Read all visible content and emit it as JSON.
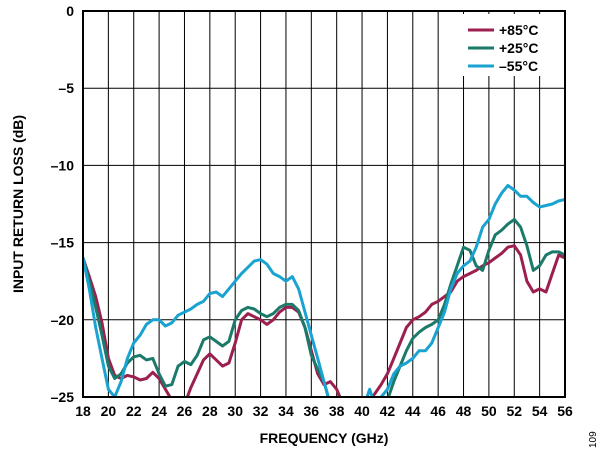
{
  "chart_data": {
    "type": "line",
    "xlabel": "FREQUENCY (GHz)",
    "ylabel": "INPUT RETURN LOSS (dB)",
    "xlim": [
      18,
      56
    ],
    "ylim": [
      -25,
      0
    ],
    "xticks": [
      18,
      20,
      22,
      24,
      26,
      28,
      30,
      32,
      34,
      36,
      38,
      40,
      42,
      44,
      46,
      48,
      50,
      52,
      54,
      56
    ],
    "xtick_labels": [
      "18",
      "20",
      "22",
      "24",
      "26",
      "28",
      "30",
      "32",
      "34",
      "36",
      "38",
      "40",
      "42",
      "44",
      "46",
      "48",
      "50",
      "52",
      "54",
      "56"
    ],
    "yticks": [
      0,
      -5,
      -10,
      -15,
      -20,
      -25
    ],
    "ytick_labels": [
      "0",
      "–5",
      "–10",
      "–15",
      "–20",
      "–25"
    ],
    "grid": true,
    "legend_position": "top-right",
    "figure_id": "109",
    "series": [
      {
        "name": "+85°C",
        "color": "#9b2050",
        "points": [
          [
            18,
            -16
          ],
          [
            18.5,
            -17.2
          ],
          [
            19,
            -18.5
          ],
          [
            19.5,
            -20.2
          ],
          [
            20,
            -22.5
          ],
          [
            20.5,
            -23.6
          ],
          [
            21,
            -23.8
          ],
          [
            21.5,
            -23.6
          ],
          [
            22,
            -23.7
          ],
          [
            22.5,
            -23.9
          ],
          [
            23,
            -23.8
          ],
          [
            23.5,
            -23.4
          ],
          [
            24,
            -23.8
          ],
          [
            24.5,
            -24.5
          ],
          [
            25,
            -25.2
          ],
          [
            25.5,
            -26
          ],
          [
            26,
            -25.5
          ],
          [
            26.5,
            -24.4
          ],
          [
            27,
            -23.5
          ],
          [
            27.5,
            -22.6
          ],
          [
            28,
            -22.2
          ],
          [
            28.5,
            -22.6
          ],
          [
            29,
            -23
          ],
          [
            29.5,
            -22.8
          ],
          [
            30,
            -21.5
          ],
          [
            30.5,
            -20
          ],
          [
            31,
            -19.6
          ],
          [
            31.5,
            -19.8
          ],
          [
            32,
            -20
          ],
          [
            32.5,
            -20.3
          ],
          [
            33,
            -20
          ],
          [
            33.5,
            -19.5
          ],
          [
            34,
            -19.2
          ],
          [
            34.5,
            -19.2
          ],
          [
            35,
            -19.5
          ],
          [
            35.5,
            -20.5
          ],
          [
            36,
            -22
          ],
          [
            36.5,
            -23.5
          ],
          [
            37,
            -24.2
          ],
          [
            37.5,
            -24
          ],
          [
            38,
            -24.5
          ],
          [
            38.5,
            -25.5
          ],
          [
            40,
            -27
          ],
          [
            40.5,
            -25.3
          ],
          [
            41,
            -24.8
          ],
          [
            41.5,
            -24.2
          ],
          [
            42,
            -23.5
          ],
          [
            42.5,
            -22.5
          ],
          [
            43,
            -21.5
          ],
          [
            43.5,
            -20.5
          ],
          [
            44,
            -20
          ],
          [
            44.5,
            -19.8
          ],
          [
            45,
            -19.5
          ],
          [
            45.5,
            -19
          ],
          [
            46,
            -18.8
          ],
          [
            46.5,
            -18.5
          ],
          [
            47,
            -18.2
          ],
          [
            47.5,
            -17.5
          ],
          [
            48,
            -17.2
          ],
          [
            48.5,
            -17
          ],
          [
            49,
            -16.8
          ],
          [
            49.5,
            -16.5
          ],
          [
            50,
            -16.3
          ],
          [
            50.5,
            -16
          ],
          [
            51,
            -15.7
          ],
          [
            51.5,
            -15.3
          ],
          [
            52,
            -15.2
          ],
          [
            52.5,
            -15.8
          ],
          [
            53,
            -17.5
          ],
          [
            53.5,
            -18.2
          ],
          [
            54,
            -18
          ],
          [
            54.5,
            -18.2
          ],
          [
            55,
            -17
          ],
          [
            55.5,
            -15.8
          ],
          [
            56,
            -16
          ]
        ]
      },
      {
        "name": "+25°C",
        "color": "#1b7a6a",
        "points": [
          [
            18,
            -16
          ],
          [
            18.5,
            -17.5
          ],
          [
            19,
            -19.2
          ],
          [
            19.5,
            -21
          ],
          [
            20,
            -23
          ],
          [
            20.5,
            -23.8
          ],
          [
            21,
            -23.5
          ],
          [
            21.5,
            -22.8
          ],
          [
            22,
            -22.4
          ],
          [
            22.5,
            -22.3
          ],
          [
            23,
            -22.6
          ],
          [
            23.5,
            -22.5
          ],
          [
            24,
            -23.5
          ],
          [
            24.5,
            -24.3
          ],
          [
            25,
            -24.2
          ],
          [
            25.5,
            -23
          ],
          [
            26,
            -22.7
          ],
          [
            26.5,
            -22.9
          ],
          [
            27,
            -22.3
          ],
          [
            27.5,
            -21.3
          ],
          [
            28,
            -21.1
          ],
          [
            28.5,
            -21.4
          ],
          [
            29,
            -21.7
          ],
          [
            29.5,
            -21.4
          ],
          [
            30,
            -20
          ],
          [
            30.5,
            -19.4
          ],
          [
            31,
            -19.2
          ],
          [
            31.5,
            -19.3
          ],
          [
            32,
            -19.6
          ],
          [
            32.5,
            -19.8
          ],
          [
            33,
            -19.6
          ],
          [
            33.5,
            -19.2
          ],
          [
            34,
            -19
          ],
          [
            34.5,
            -19
          ],
          [
            35,
            -19.4
          ],
          [
            35.5,
            -20.5
          ],
          [
            36,
            -22.3
          ],
          [
            36.5,
            -23.2
          ],
          [
            37,
            -24
          ],
          [
            37.5,
            -25.5
          ],
          [
            38,
            -27
          ],
          [
            41.5,
            -27
          ],
          [
            42,
            -25.2
          ],
          [
            42.5,
            -24
          ],
          [
            43,
            -23
          ],
          [
            43.5,
            -22
          ],
          [
            44,
            -21.2
          ],
          [
            44.5,
            -20.8
          ],
          [
            45,
            -20.5
          ],
          [
            45.5,
            -20.3
          ],
          [
            46,
            -20
          ],
          [
            46.5,
            -19
          ],
          [
            47,
            -17.7
          ],
          [
            47.5,
            -16.5
          ],
          [
            48,
            -15.3
          ],
          [
            48.5,
            -15.5
          ],
          [
            49,
            -16.5
          ],
          [
            49.5,
            -16.8
          ],
          [
            50,
            -15.5
          ],
          [
            50.5,
            -14.5
          ],
          [
            51,
            -14.2
          ],
          [
            51.5,
            -13.8
          ],
          [
            52,
            -13.5
          ],
          [
            52.5,
            -14
          ],
          [
            53,
            -15.2
          ],
          [
            53.5,
            -16.8
          ],
          [
            54,
            -16.5
          ],
          [
            54.5,
            -15.8
          ],
          [
            55,
            -15.6
          ],
          [
            55.5,
            -15.6
          ],
          [
            56,
            -15.8
          ]
        ]
      },
      {
        "name": "–55°C",
        "color": "#1aa3d1",
        "points": [
          [
            18,
            -16
          ],
          [
            18.5,
            -18
          ],
          [
            19,
            -20.5
          ],
          [
            19.5,
            -22.5
          ],
          [
            20,
            -24.5
          ],
          [
            20.5,
            -25
          ],
          [
            21,
            -24
          ],
          [
            21.5,
            -22.5
          ],
          [
            22,
            -21.5
          ],
          [
            22.5,
            -21
          ],
          [
            23,
            -20.3
          ],
          [
            23.5,
            -20
          ],
          [
            24,
            -20
          ],
          [
            24.5,
            -20.4
          ],
          [
            25,
            -20.2
          ],
          [
            25.5,
            -19.7
          ],
          [
            26,
            -19.5
          ],
          [
            26.5,
            -19.3
          ],
          [
            27,
            -19
          ],
          [
            27.5,
            -18.8
          ],
          [
            28,
            -18.3
          ],
          [
            28.5,
            -18.2
          ],
          [
            29,
            -18.5
          ],
          [
            29.5,
            -18
          ],
          [
            30,
            -17.5
          ],
          [
            30.5,
            -17
          ],
          [
            31,
            -16.6
          ],
          [
            31.5,
            -16.2
          ],
          [
            32,
            -16.1
          ],
          [
            32.5,
            -16.4
          ],
          [
            33,
            -17
          ],
          [
            33.5,
            -17.2
          ],
          [
            34,
            -17.5
          ],
          [
            34.5,
            -17.2
          ],
          [
            35,
            -18
          ],
          [
            35.5,
            -19.5
          ],
          [
            36,
            -21
          ],
          [
            36.5,
            -22.5
          ],
          [
            37,
            -24
          ],
          [
            37.5,
            -25.5
          ],
          [
            38,
            -26
          ],
          [
            40,
            -26
          ],
          [
            40.3,
            -25.2
          ],
          [
            40.6,
            -24.5
          ],
          [
            41,
            -25.5
          ],
          [
            41.5,
            -25
          ],
          [
            42,
            -24.5
          ],
          [
            42.5,
            -23.5
          ],
          [
            43,
            -23
          ],
          [
            43.5,
            -22.8
          ],
          [
            44,
            -22.5
          ],
          [
            44.5,
            -22
          ],
          [
            45,
            -22
          ],
          [
            45.5,
            -21.5
          ],
          [
            46,
            -20.5
          ],
          [
            46.5,
            -19.5
          ],
          [
            47,
            -18
          ],
          [
            47.5,
            -17
          ],
          [
            48,
            -16.5
          ],
          [
            48.5,
            -16.2
          ],
          [
            49,
            -15.3
          ],
          [
            49.5,
            -14
          ],
          [
            50,
            -13.5
          ],
          [
            50.5,
            -12.5
          ],
          [
            51,
            -11.8
          ],
          [
            51.5,
            -11.3
          ],
          [
            52,
            -11.6
          ],
          [
            52.5,
            -12
          ],
          [
            53,
            -12
          ],
          [
            53.5,
            -12.4
          ],
          [
            54,
            -12.7
          ],
          [
            54.5,
            -12.6
          ],
          [
            55,
            -12.5
          ],
          [
            55.5,
            -12.3
          ],
          [
            56,
            -12.2
          ]
        ]
      }
    ]
  }
}
